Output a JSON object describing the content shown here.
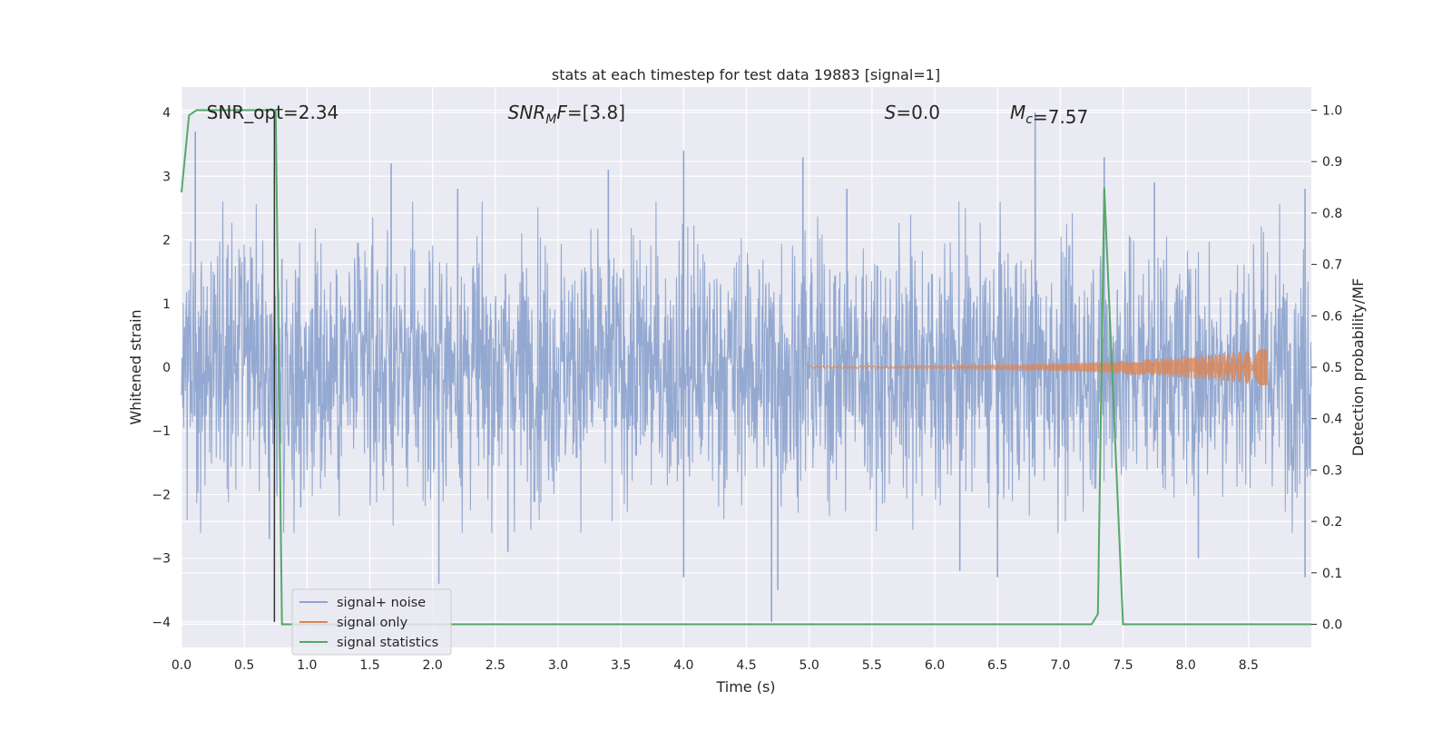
{
  "chart_data": {
    "type": "line",
    "title": "stats at each timestep for test data 19883 [signal=1]",
    "xlabel": "Time (s)",
    "ylabel_left": "Whitened strain",
    "ylabel_right": "Detection probability/MF",
    "xlim": [
      0.0,
      9.0
    ],
    "ylim_left": [
      -4.4,
      4.4
    ],
    "ylim_right": [
      -0.045,
      1.045
    ],
    "grid": true,
    "legend_placement": "lower-left",
    "x_ticks": [
      "0.0",
      "0.5",
      "1.0",
      "1.5",
      "2.0",
      "2.5",
      "3.0",
      "3.5",
      "4.0",
      "4.5",
      "5.0",
      "5.5",
      "6.0",
      "6.5",
      "7.0",
      "7.5",
      "8.0",
      "8.5"
    ],
    "x_tick_values": [
      0,
      0.5,
      1,
      1.5,
      2,
      2.5,
      3,
      3.5,
      4,
      4.5,
      5,
      5.5,
      6,
      6.5,
      7,
      7.5,
      8,
      8.5
    ],
    "y_ticks_left": [
      "−4",
      "−3",
      "−2",
      "−1",
      "0",
      "1",
      "2",
      "3",
      "4"
    ],
    "y_tick_values_left": [
      -4,
      -3,
      -2,
      -1,
      0,
      1,
      2,
      3,
      4
    ],
    "y_ticks_right": [
      "0.0",
      "0.1",
      "0.2",
      "0.3",
      "0.4",
      "0.5",
      "0.6",
      "0.7",
      "0.8",
      "0.9",
      "1.0"
    ],
    "y_tick_values_right": [
      0,
      0.1,
      0.2,
      0.3,
      0.4,
      0.5,
      0.6,
      0.7,
      0.8,
      0.9,
      1.0
    ],
    "annotations": [
      {
        "label": "SNR_opt=2.34",
        "x": 0.2,
        "y": 4.0
      },
      {
        "label": "SNR_MF=[3.8]",
        "x": 2.6,
        "y": 4.0
      },
      {
        "label": "S=0.0",
        "x": 5.6,
        "y": 4.0
      },
      {
        "label": "M_c=7.57",
        "x": 6.6,
        "y": 4.0
      }
    ],
    "series": [
      {
        "name": "signal+ noise",
        "color": "#8fa5cf",
        "axis": "left",
        "kind": "noise",
        "envelope_sigma": 1.0,
        "peaks_high": [
          [
            0.11,
            3.7
          ],
          [
            0.8,
            1.7
          ],
          [
            1.67,
            3.2
          ],
          [
            2.2,
            2.8
          ],
          [
            3.4,
            3.1
          ],
          [
            4.0,
            3.4
          ],
          [
            4.95,
            3.3
          ],
          [
            5.3,
            2.8
          ],
          [
            6.8,
            4.0
          ],
          [
            7.35,
            3.3
          ],
          [
            7.75,
            2.9
          ],
          [
            8.95,
            2.8
          ]
        ],
        "peaks_low": [
          [
            0.7,
            -2.7
          ],
          [
            0.95,
            -2.2
          ],
          [
            2.05,
            -3.4
          ],
          [
            2.6,
            -2.9
          ],
          [
            4.0,
            -3.3
          ],
          [
            4.7,
            -4.0
          ],
          [
            4.75,
            -3.5
          ],
          [
            6.2,
            -3.2
          ],
          [
            6.5,
            -3.3
          ],
          [
            8.1,
            -3.0
          ],
          [
            8.95,
            -3.3
          ]
        ]
      },
      {
        "name": "signal only",
        "color": "#dd8452",
        "axis": "left",
        "kind": "chirp",
        "start": 5.0,
        "end": 8.65,
        "amplitude_end": 0.28
      },
      {
        "name": "signal statistics",
        "color": "#55a868",
        "axis": "right",
        "kind": "line",
        "x": [
          0.0,
          0.06,
          0.12,
          0.75,
          0.8,
          0.85,
          7.25,
          7.3,
          7.35,
          7.5,
          9.0
        ],
        "y": [
          0.84,
          0.99,
          1.0,
          1.0,
          0.0,
          0.0,
          0.0,
          0.02,
          0.85,
          0.0,
          0.0
        ]
      }
    ],
    "marker_line": {
      "x": 0.74,
      "from": -4.0,
      "to": 4.0,
      "color": "#333333"
    }
  }
}
